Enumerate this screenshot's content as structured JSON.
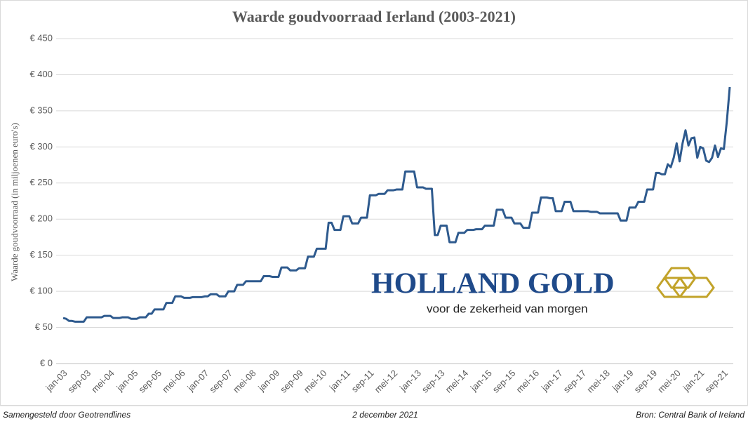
{
  "chart_data": {
    "type": "line",
    "title": "Waarde goudvoorraad Ierland (2003-2021)",
    "y_label": "Waarde goudvoorraad (in miljoenen euro's)",
    "categories": [
      "jan-03",
      null,
      null,
      null,
      null,
      null,
      null,
      null,
      "sep-03",
      null,
      null,
      null,
      null,
      null,
      null,
      null,
      "mei-04",
      null,
      null,
      null,
      null,
      null,
      null,
      null,
      "jan-05",
      null,
      null,
      null,
      null,
      null,
      null,
      null,
      "sep-05",
      null,
      null,
      null,
      null,
      null,
      null,
      null,
      "mei-06",
      null,
      null,
      null,
      null,
      null,
      null,
      null,
      "jan-07",
      null,
      null,
      null,
      null,
      null,
      null,
      null,
      "sep-07",
      null,
      null,
      null,
      null,
      null,
      null,
      null,
      "mei-08",
      null,
      null,
      null,
      null,
      null,
      null,
      null,
      "jan-09",
      null,
      null,
      null,
      null,
      null,
      null,
      null,
      "sep-09",
      null,
      null,
      null,
      null,
      null,
      null,
      null,
      "mei-10",
      null,
      null,
      null,
      null,
      null,
      null,
      null,
      "jan-11",
      null,
      null,
      null,
      null,
      null,
      null,
      null,
      "sep-11",
      null,
      null,
      null,
      null,
      null,
      null,
      null,
      "mei-12",
      null,
      null,
      null,
      null,
      null,
      null,
      null,
      "jan-13",
      null,
      null,
      null,
      null,
      null,
      null,
      null,
      "sep-13",
      null,
      null,
      null,
      null,
      null,
      null,
      null,
      "mei-14",
      null,
      null,
      null,
      null,
      null,
      null,
      null,
      "jan-15",
      null,
      null,
      null,
      null,
      null,
      null,
      null,
      "sep-15",
      null,
      null,
      null,
      null,
      null,
      null,
      null,
      "mei-16",
      null,
      null,
      null,
      null,
      null,
      null,
      null,
      "jan-17",
      null,
      null,
      null,
      null,
      null,
      null,
      null,
      "sep-17",
      null,
      null,
      null,
      null,
      null,
      null,
      null,
      "mei-18",
      null,
      null,
      null,
      null,
      null,
      null,
      null,
      "jan-19",
      null,
      null,
      null,
      null,
      null,
      null,
      null,
      "sep-19",
      null,
      null,
      null,
      null,
      null,
      null,
      null,
      "mei-20",
      null,
      null,
      null,
      null,
      null,
      null,
      null,
      "jan-21",
      null,
      null,
      null,
      null,
      null,
      null,
      null,
      "sep-21",
      null,
      null
    ],
    "values": [
      63,
      62,
      59,
      59,
      58,
      58,
      58,
      58,
      64,
      64,
      64,
      64,
      64,
      64,
      66,
      66,
      66,
      63,
      63,
      63,
      64,
      64,
      64,
      62,
      62,
      62,
      64,
      64,
      64,
      69,
      69,
      75,
      75,
      75,
      75,
      84,
      84,
      84,
      93,
      93,
      93,
      91,
      91,
      91,
      92,
      92,
      92,
      92,
      93,
      93,
      96,
      96,
      96,
      93,
      93,
      93,
      100,
      100,
      100,
      109,
      109,
      109,
      114,
      114,
      114,
      114,
      114,
      114,
      121,
      121,
      121,
      120,
      120,
      120,
      133,
      133,
      133,
      129,
      129,
      129,
      132,
      132,
      132,
      148,
      148,
      148,
      159,
      159,
      159,
      159,
      195,
      195,
      185,
      185,
      185,
      204,
      204,
      204,
      194,
      194,
      194,
      202,
      202,
      202,
      233,
      233,
      233,
      235,
      235,
      235,
      240,
      240,
      240,
      241,
      241,
      241,
      266,
      266,
      266,
      266,
      244,
      244,
      244,
      242,
      242,
      242,
      178,
      178,
      191,
      191,
      191,
      168,
      168,
      168,
      181,
      181,
      181,
      185,
      185,
      185,
      186,
      186,
      186,
      191,
      191,
      191,
      191,
      213,
      213,
      213,
      202,
      202,
      202,
      194,
      194,
      194,
      188,
      188,
      188,
      209,
      209,
      209,
      230,
      230,
      230,
      229,
      229,
      211,
      211,
      211,
      224,
      224,
      224,
      211,
      211,
      211,
      211,
      211,
      211,
      210,
      210,
      210,
      208,
      208,
      208,
      208,
      208,
      208,
      208,
      198,
      198,
      198,
      216,
      216,
      216,
      224,
      224,
      224,
      241,
      241,
      241,
      264,
      264,
      262,
      262,
      276,
      272,
      285,
      305,
      280,
      305,
      323,
      302,
      312,
      313,
      285,
      300,
      298,
      281,
      279,
      285,
      302,
      286,
      298,
      297,
      335,
      383
    ],
    "color": "#2e5a8e",
    "ylim": [
      0,
      450
    ],
    "yticks": [
      {
        "value": 0,
        "label": "€ 0"
      },
      {
        "value": 50,
        "label": "€ 50"
      },
      {
        "value": 100,
        "label": "€ 100"
      },
      {
        "value": 150,
        "label": "€ 150"
      },
      {
        "value": 200,
        "label": "€ 200"
      },
      {
        "value": 250,
        "label": "€ 250"
      },
      {
        "value": 300,
        "label": "€ 300"
      },
      {
        "value": 350,
        "label": "€ 350"
      },
      {
        "value": 400,
        "label": "€ 400"
      },
      {
        "value": 450,
        "label": "€ 450"
      }
    ],
    "grid": true,
    "logo": {
      "name": "HOLLAND GOLD",
      "tagline": "voor de zekerheid van morgen"
    },
    "footer": {
      "left": "Samengesteld door Geotrendlines",
      "center": "2 december 2021",
      "right": "Bron: Central Bank of Ireland"
    }
  }
}
